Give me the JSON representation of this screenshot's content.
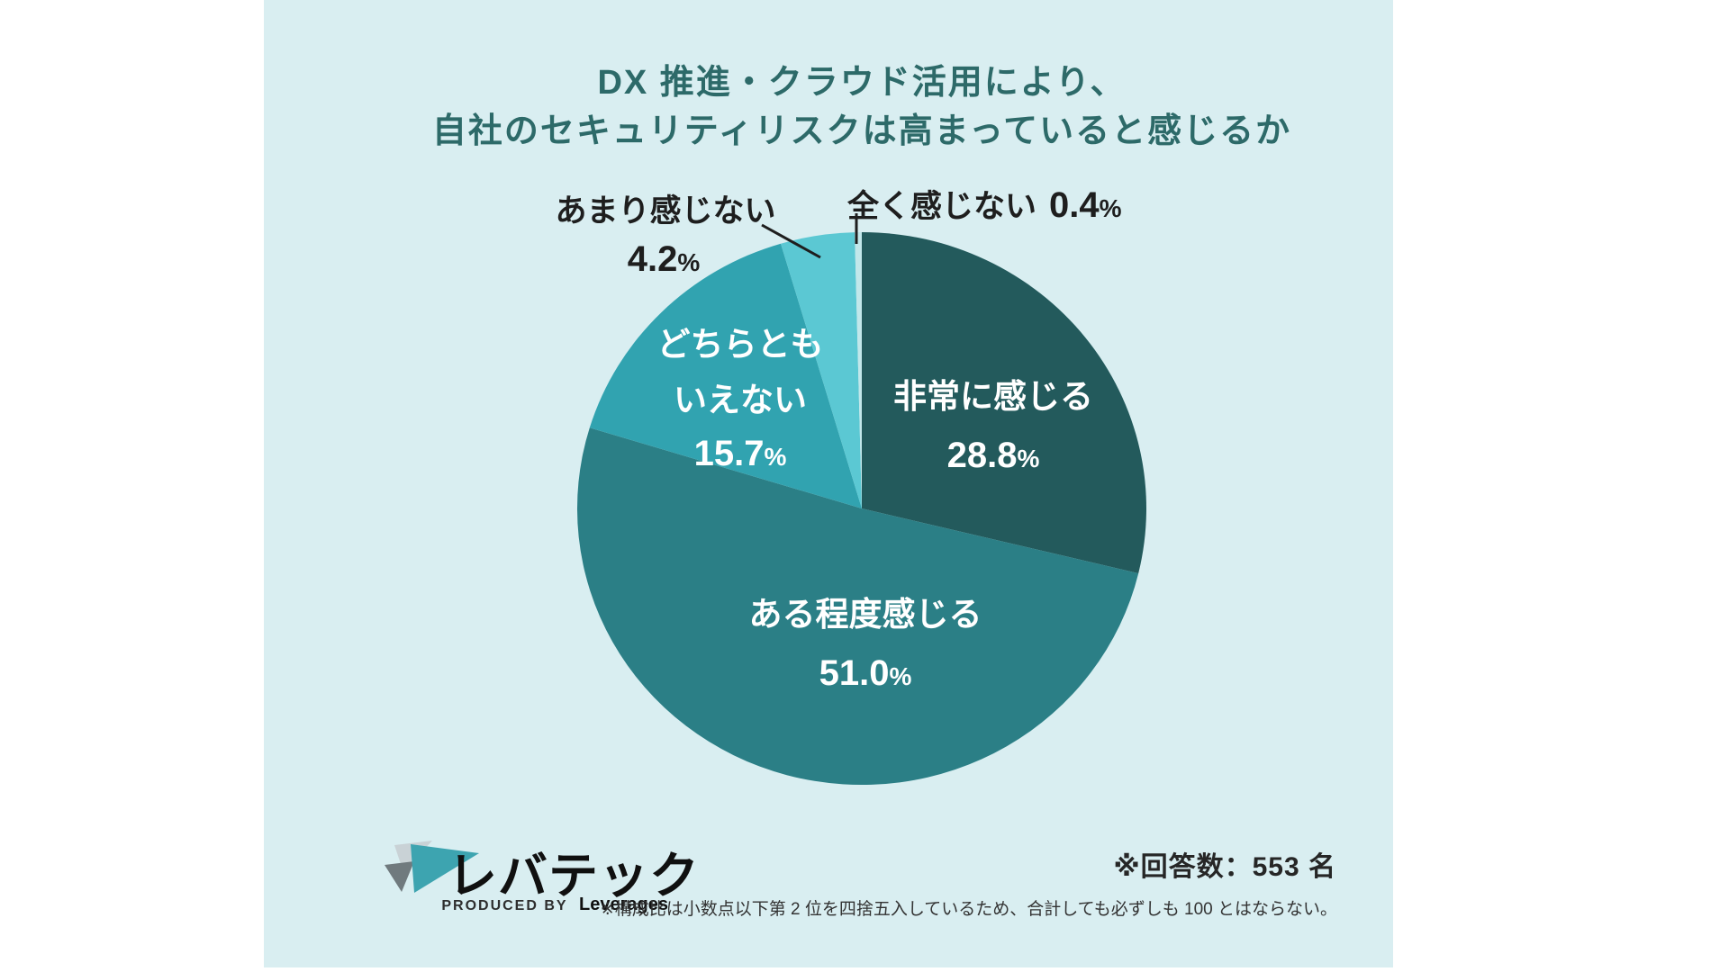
{
  "title": {
    "line1": "DX 推進・クラウド活用により、",
    "line2": "自社のセキュリティリスクは高まっていると感じるか"
  },
  "chart_data": {
    "type": "pie",
    "title": "DX 推進・クラウド活用により、自社のセキュリティリスクは高まっていると感じるか",
    "start_angle_deg": 0,
    "direction": "clockwise",
    "unit": "%",
    "segments": [
      {
        "label": "非常に感じる",
        "value": 28.8,
        "pct": "28.8",
        "color": "#235A5C",
        "label_placement": "inside"
      },
      {
        "label": "ある程度感じる",
        "value": 51.0,
        "pct": "51.0",
        "color": "#2B7F86",
        "label_placement": "inside"
      },
      {
        "label": "どちらともいえない",
        "label_line1": "どちらとも",
        "label_line2": "いえない",
        "value": 15.7,
        "pct": "15.7",
        "color": "#31A3B0",
        "label_placement": "inside"
      },
      {
        "label": "あまり感じない",
        "value": 4.2,
        "pct": "4.2",
        "color": "#5BC8D3",
        "label_placement": "outside"
      },
      {
        "label": "全く感じない",
        "value": 0.4,
        "pct": "0.4",
        "color": "#C2E7EA",
        "label_placement": "outside"
      }
    ]
  },
  "notes": {
    "respondents": "※回答数：553 名",
    "disclaimer": "※構成比は小数点以下第 2 位を四捨五入しているため、合計しても必ずしも 100 とはならない。"
  },
  "logo": {
    "name": "レバテック",
    "sub_prefix": "PRODUCED BY",
    "sub_name": "Leverages"
  },
  "colors": {
    "background": "#D9EEF1",
    "page_margin": "#FFFFFF",
    "title_text": "#2D6A69",
    "label_dark": "#1E1E1E",
    "label_light": "#FFFFFF",
    "leader_line": "#1E1E1E",
    "logo_teal": "#3DA4B0",
    "logo_gray_light": "#C9D2D6",
    "logo_gray_dark": "#707A7E"
  }
}
